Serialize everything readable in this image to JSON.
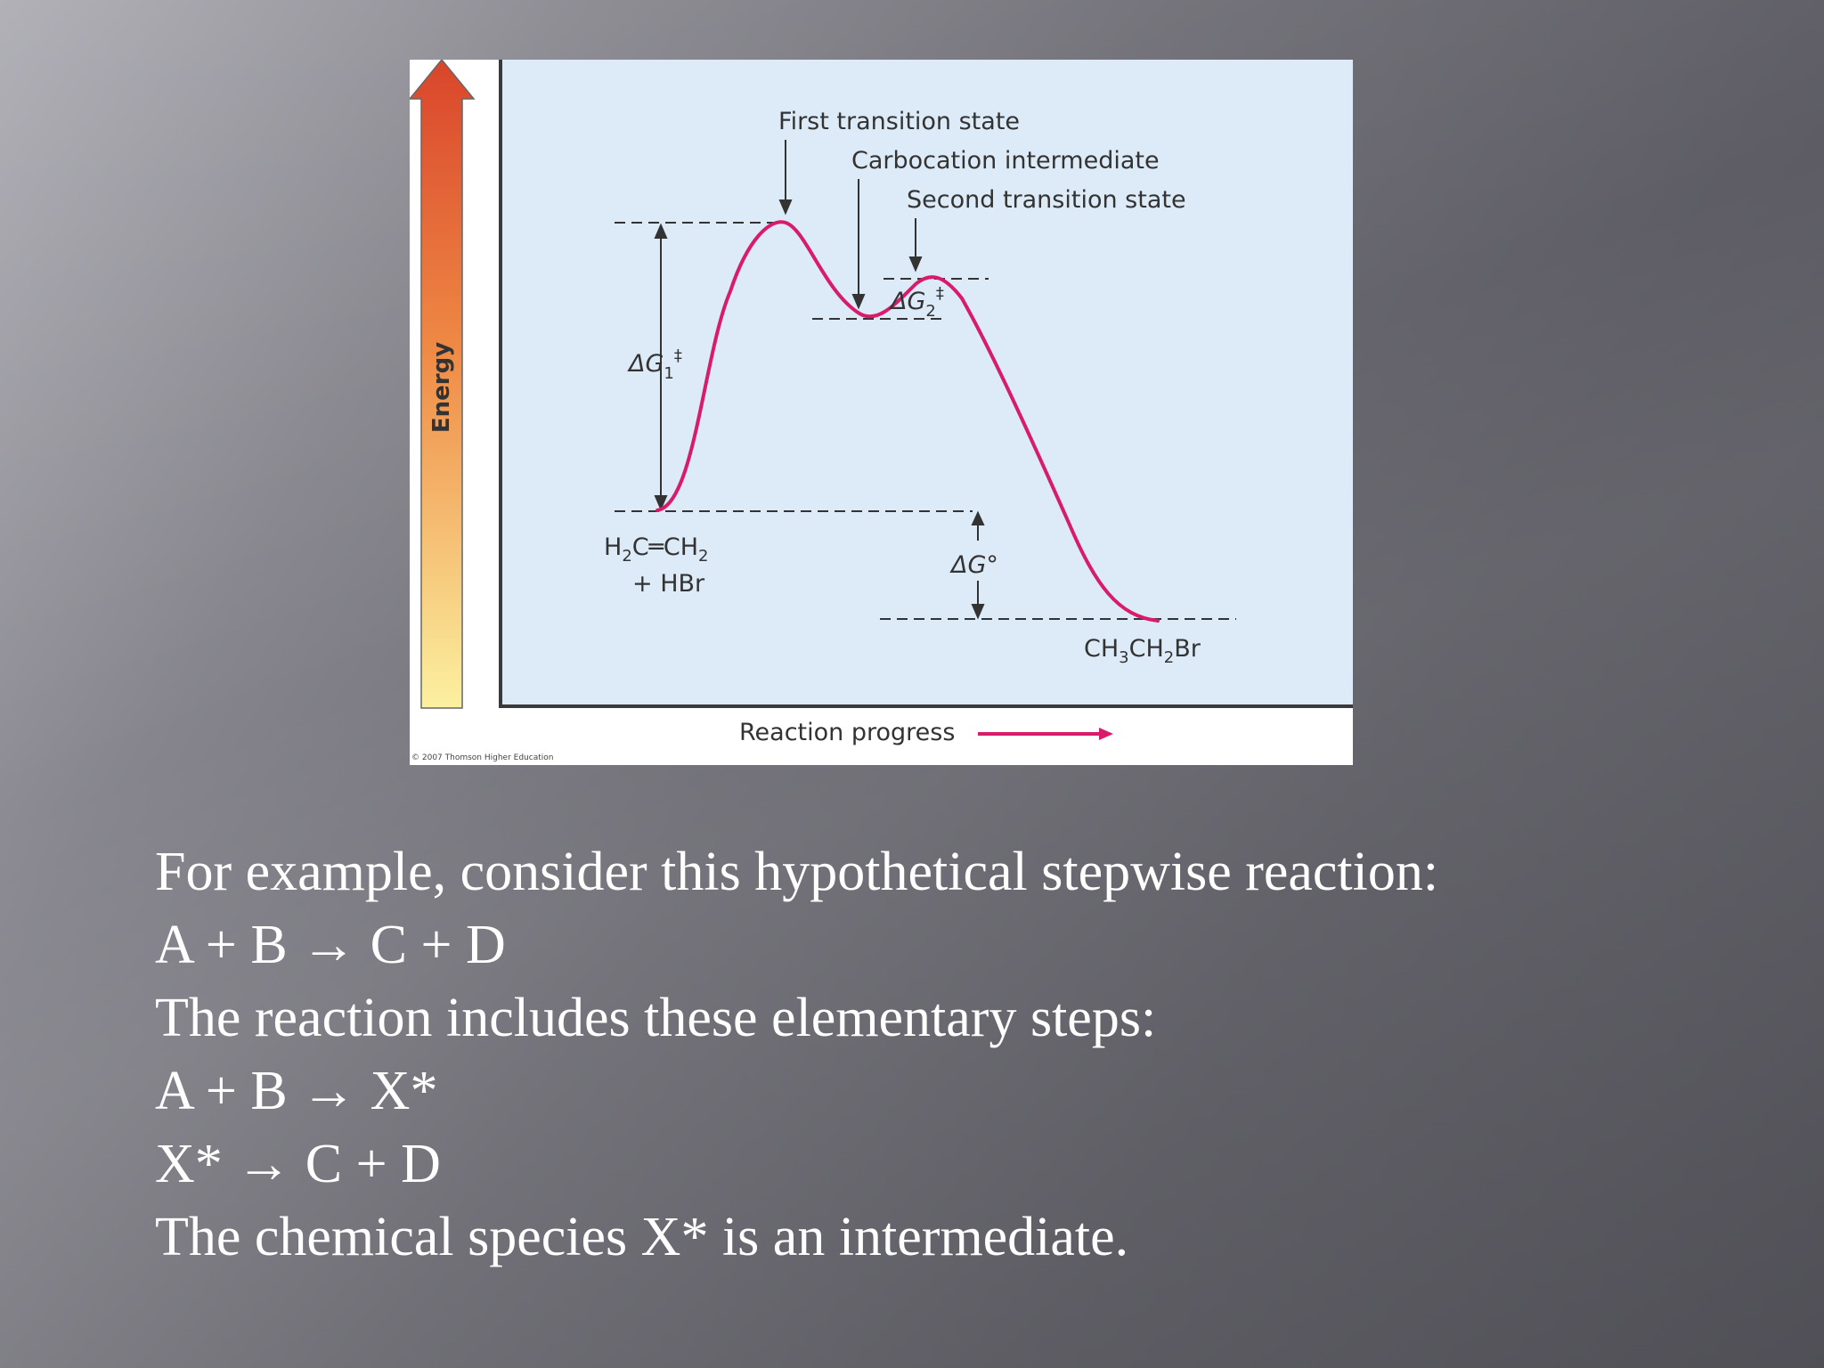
{
  "diagram": {
    "axis_y_label": "Energy",
    "axis_x_label": "Reaction progress",
    "labels": {
      "first_ts": "First transition state",
      "carbocation": "Carbocation intermediate",
      "second_ts": "Second transition state",
      "dg1": "ΔG",
      "dg1_sub": "1",
      "dg1_sup": "‡",
      "dg2": "ΔG",
      "dg2_sub": "2",
      "dg2_sup": "‡",
      "dg0": "ΔG°",
      "reactant_line1_a": "H",
      "reactant_line1_sub1": "2",
      "reactant_line1_b": "C═CH",
      "reactant_line1_sub2": "2",
      "reactant_line2": "+ HBr",
      "product_a": "CH",
      "product_sub1": "3",
      "product_b": "CH",
      "product_sub2": "2",
      "product_c": "Br"
    },
    "copyright": "© 2007 Thomson Higher Education",
    "colors": {
      "curve": "#d81b6a",
      "panel": "#dcebf7",
      "arrow_top": "#d9452b",
      "arrow_bottom": "#fbf1a0"
    }
  },
  "caption": {
    "lines": [
      "For example, consider this hypothetical stepwise reaction:",
      "A + B → C + D",
      "The reaction includes these elementary steps:",
      "A + B → X*",
      "X* → C + D",
      "The chemical species X* is an intermediate."
    ]
  }
}
